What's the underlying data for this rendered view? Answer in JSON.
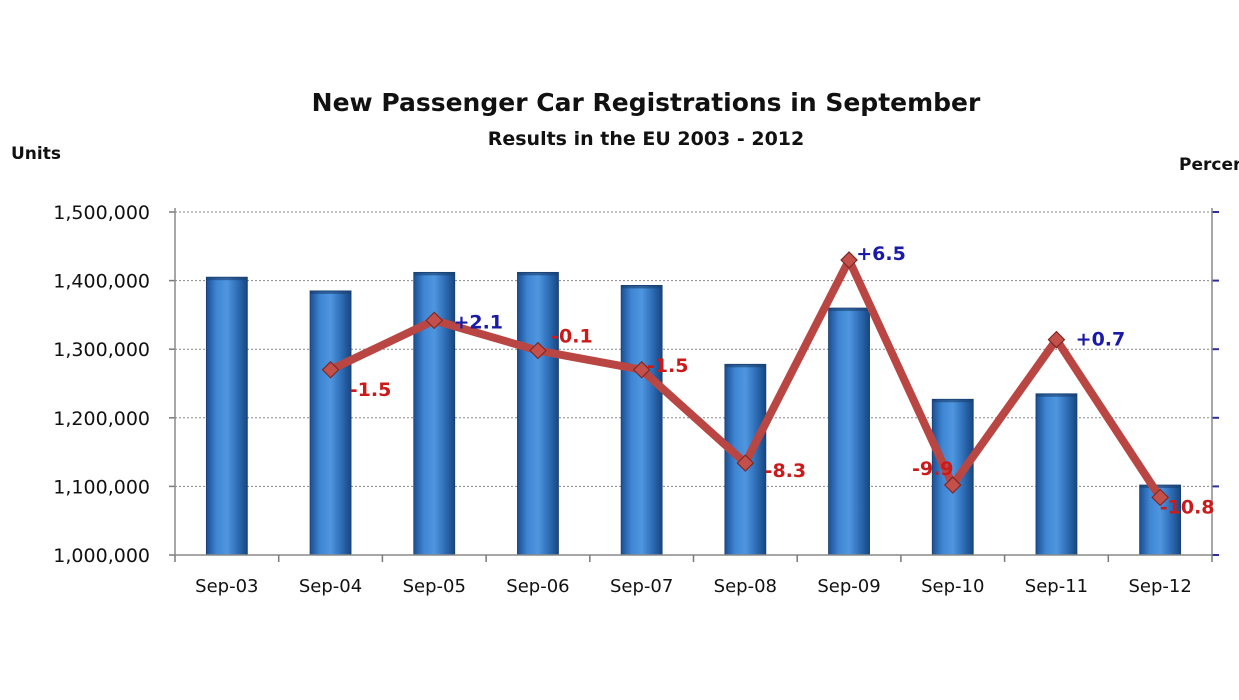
{
  "chart_data": {
    "type": "bar",
    "title": "New Passenger Car Registrations in September",
    "subtitle": "Results in the EU 2003 - 2012",
    "ylabel_left": "Units",
    "ylabel_right": "Percer",
    "categories": [
      "Sep-03",
      "Sep-04",
      "Sep-05",
      "Sep-06",
      "Sep-07",
      "Sep-08",
      "Sep-09",
      "Sep-10",
      "Sep-11",
      "Sep-12"
    ],
    "y_ticks": [
      "1,000,000",
      "1,100,000",
      "1,200,000",
      "1,300,000",
      "1,400,000",
      "1,500,000"
    ],
    "ylim": [
      1000000,
      1500000
    ],
    "y2lim": [
      -15,
      10
    ],
    "grid": true,
    "series": [
      {
        "type": "bar",
        "values": [
          1405000,
          1385000,
          1412000,
          1412000,
          1393000,
          1278000,
          1360000,
          1227000,
          1235000,
          1102000
        ]
      },
      {
        "type": "line",
        "axis": "right",
        "values": [
          null,
          -1.5,
          2.1,
          -0.1,
          -1.5,
          -8.3,
          6.5,
          -9.9,
          0.7,
          -10.8
        ],
        "labels": [
          "",
          "-1.5",
          "+2.1",
          "-0.1",
          "-1.5",
          "-8.3",
          "+6.5",
          "-9.9",
          "+0.7",
          "-10.8"
        ]
      }
    ],
    "colors": {
      "bar": "#2f6fb8",
      "line": "#b94642",
      "positive_label": "#1a1aa8",
      "negative_label": "#cc1a1a",
      "right_axis": "#2e2ea0"
    }
  }
}
